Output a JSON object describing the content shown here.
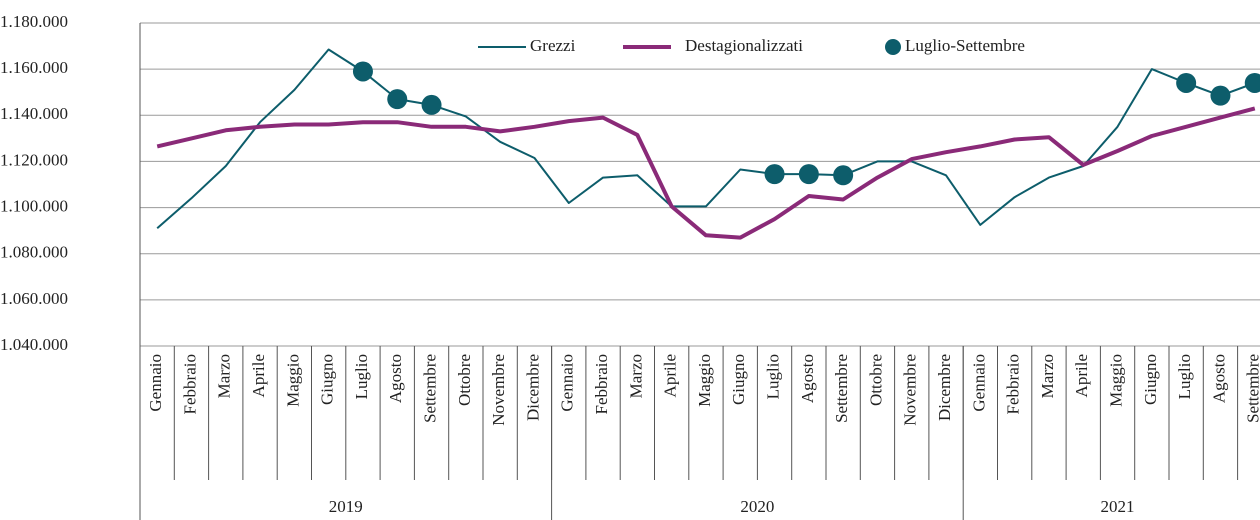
{
  "chart_data": {
    "type": "line",
    "categories": [
      "Gennaio",
      "Febbraio",
      "Marzo",
      "Aprile",
      "Maggio",
      "Giugno",
      "Luglio",
      "Agosto",
      "Settembre",
      "Ottobre",
      "Novembre",
      "Dicembre",
      "Gennaio",
      "Febbraio",
      "Marzo",
      "Aprile",
      "Maggio",
      "Giugno",
      "Luglio",
      "Agosto",
      "Settembre",
      "Ottobre",
      "Novembre",
      "Dicembre",
      "Gennaio",
      "Febbraio",
      "Marzo",
      "Aprile",
      "Maggio",
      "Giugno",
      "Luglio",
      "Agosto",
      "Settembre"
    ],
    "years": [
      "2019",
      "2020",
      "2021"
    ],
    "series": [
      {
        "name": "Grezzi",
        "color": "#0d5d6b",
        "style": "line",
        "values": [
          1091000,
          1104000,
          1118000,
          1137000,
          1151000,
          1168500,
          1159000,
          1147000,
          1144500,
          1139500,
          1128500,
          1121500,
          1102000,
          1113000,
          1114000,
          1100500,
          1100500,
          1116500,
          1114500,
          1114500,
          1114000,
          1120000,
          1120000,
          1114000,
          1092500,
          1104500,
          1113000,
          1118000,
          1135000,
          1160000,
          1154000,
          1148500,
          1154000
        ]
      },
      {
        "name": "Destagionalizzati",
        "color": "#8a2a78",
        "style": "thick",
        "values": [
          1126500,
          1130000,
          1133500,
          1135000,
          1136000,
          1136000,
          1137000,
          1137000,
          1135000,
          1135000,
          1133000,
          1135000,
          1137500,
          1139000,
          1131500,
          1100500,
          1088000,
          1087000,
          1095000,
          1105000,
          1103500,
          1113000,
          1121000,
          1124000,
          1126500,
          1129500,
          1130500,
          1118500,
          1124500,
          1131000,
          1135000,
          1139000,
          1143000
        ]
      },
      {
        "name": "Luglio-Settembre",
        "color": "#0d5d6b",
        "style": "dots",
        "values": [
          null,
          null,
          null,
          null,
          null,
          null,
          1159000,
          1147000,
          1144500,
          null,
          null,
          null,
          null,
          null,
          null,
          null,
          null,
          null,
          1114500,
          1114500,
          1114000,
          null,
          null,
          null,
          null,
          null,
          null,
          null,
          null,
          null,
          1154000,
          1148500,
          1154000
        ]
      }
    ],
    "ylim": [
      1040000,
      1180000
    ],
    "yticks": [
      {
        "value": 1040000,
        "label": "1.040.000"
      },
      {
        "value": 1060000,
        "label": "1.060.000"
      },
      {
        "value": 1080000,
        "label": "1.080.000"
      },
      {
        "value": 1100000,
        "label": "1.100.000"
      },
      {
        "value": 1120000,
        "label": "1.120.000"
      },
      {
        "value": 1140000,
        "label": "1.140.000"
      },
      {
        "value": 1160000,
        "label": "1.160.000"
      },
      {
        "value": 1180000,
        "label": "1.180.000"
      }
    ],
    "grid": true
  }
}
